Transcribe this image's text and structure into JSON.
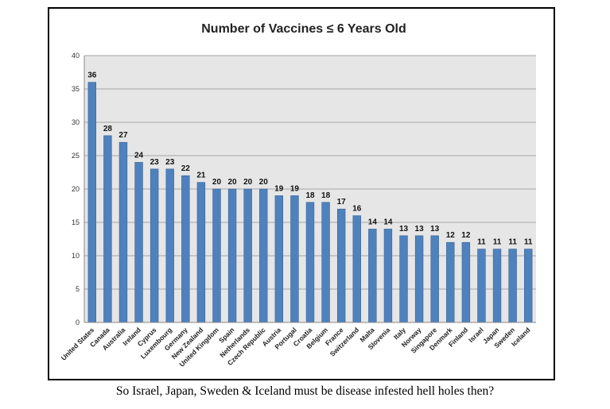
{
  "chart_data": {
    "type": "bar",
    "title": "Number of Vaccines ≤ 6 Years Old",
    "xlabel": "",
    "ylabel": "",
    "ylim": [
      0,
      40
    ],
    "yticks": [
      0,
      5,
      10,
      15,
      20,
      25,
      30,
      35,
      40
    ],
    "grid": true,
    "legend": false,
    "categories": [
      "United States",
      "Canada",
      "Australia",
      "Ireland",
      "Cyprus",
      "Luxembourg",
      "Germany",
      "New Zealand",
      "United Kingdom",
      "Spain",
      "Netherlands",
      "Czech Republic",
      "Austria",
      "Portugal",
      "Croatia",
      "Belgium",
      "France",
      "Switzerland",
      "Malta",
      "Slovenia",
      "Italy",
      "Norway",
      "Singapore",
      "Denmark",
      "Finland",
      "Israel",
      "Japan",
      "Sweden",
      "Iceland"
    ],
    "values": [
      36,
      28,
      27,
      24,
      23,
      23,
      22,
      21,
      20,
      20,
      20,
      20,
      19,
      19,
      18,
      18,
      17,
      16,
      14,
      14,
      13,
      13,
      13,
      12,
      12,
      11,
      11,
      11,
      11
    ],
    "colors": {
      "bar": "#4f81bd",
      "bar_edge": "#3a6595",
      "plot_bg": "#e6e6e6",
      "grid": "#a6a6a6"
    }
  },
  "caption": "So Israel, Japan, Sweden & Iceland must be disease infested hell holes then?"
}
